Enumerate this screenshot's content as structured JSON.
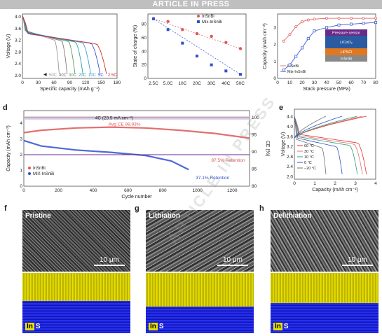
{
  "banner": "ARTICLE IN PRESS",
  "colors": {
    "red": "#e05555",
    "blue": "#2f4fd0",
    "yellow": "#e0d800",
    "grid": "#dddddd"
  },
  "panel_labels": {
    "d": "d",
    "e": "e",
    "f": "f",
    "g": "g",
    "h": "h"
  },
  "chart_data": [
    {
      "id": "a",
      "type": "line",
      "xlabel": "Specific capacity (mAh g⁻¹)",
      "ylabel": "Voltage (V)",
      "xlim": [
        0,
        180
      ],
      "ylim": [
        1.9,
        4.1
      ],
      "xticks": [
        0,
        30,
        60,
        90,
        120,
        150,
        180
      ],
      "yticks": [
        2.0,
        2.4,
        2.8,
        3.2,
        3.6,
        4.0
      ],
      "legend": [
        "50C",
        "40C",
        "30C",
        "20C",
        "10C",
        "5C",
        "2.5C"
      ],
      "series_colors": [
        "#9a9a9a",
        "#7a7a7a",
        "#5e9a5e",
        "#2ea0a0",
        "#3ea0d0",
        "#3050d0",
        "#d03030"
      ],
      "series_capacity_end": [
        70,
        85,
        100,
        115,
        130,
        148,
        160
      ]
    },
    {
      "id": "b",
      "type": "scatter",
      "xlabel": "",
      "ylabel": "State of charge (%)",
      "categories": [
        "2.5C",
        "5.0C",
        "10C",
        "20C",
        "30C",
        "40C",
        "50C"
      ],
      "ylim": [
        0,
        95
      ],
      "yticks": [
        0,
        20,
        40,
        60,
        80
      ],
      "series": [
        {
          "name": "InSnBi",
          "color": "#e05555",
          "values": [
            88,
            84,
            72,
            66,
            62,
            53,
            44
          ]
        },
        {
          "name": "Mix-InSnBi",
          "color": "#2f4fd0",
          "values": [
            88,
            72,
            52,
            33,
            20,
            11,
            6
          ]
        }
      ]
    },
    {
      "id": "c",
      "type": "line",
      "xlabel": "Stack pressure (MPa)",
      "ylabel": "Capacity (mAh cm⁻²)",
      "xlim": [
        0,
        80
      ],
      "ylim": [
        0,
        3.8
      ],
      "xticks": [
        0,
        10,
        20,
        30,
        40,
        50,
        60,
        70,
        80
      ],
      "yticks": [
        0,
        1,
        2,
        3
      ],
      "series": [
        {
          "name": "InSnBi",
          "color": "#e05555",
          "x": [
            5,
            10,
            15,
            20,
            25,
            30,
            40,
            50,
            60,
            70,
            80
          ],
          "values": [
            2.2,
            2.6,
            3.05,
            3.35,
            3.45,
            3.5,
            3.55,
            3.55,
            3.55,
            3.55,
            3.55
          ]
        },
        {
          "name": "Mix-InSnBi",
          "color": "#2f4fd0",
          "x": [
            5,
            10,
            15,
            20,
            25,
            30,
            40,
            50,
            60,
            70,
            80
          ],
          "values": [
            0.5,
            0.8,
            1.3,
            1.8,
            2.35,
            2.8,
            3.0,
            3.15,
            3.2,
            3.25,
            3.3
          ]
        }
      ],
      "inset": {
        "layers": [
          "Pressure sensor",
          "LiCoO₂",
          "LiPSCl",
          "InSnBi"
        ],
        "colors": [
          "#6a2a8a",
          "#2a5aa0",
          "#e07820",
          "#888888"
        ]
      }
    },
    {
      "id": "d",
      "type": "scatter",
      "xlabel": "Cycle number",
      "ylabel": "Capacity (mAh cm⁻²)",
      "ylabel2": "CE (%)",
      "xlim": [
        0,
        1300
      ],
      "ylim": [
        0,
        4.8
      ],
      "xticks": [
        0,
        200,
        400,
        600,
        800,
        1000,
        1200
      ],
      "yticks": [
        0,
        1,
        2,
        3,
        4
      ],
      "y2ticks": [
        80,
        85,
        90,
        95,
        100
      ],
      "y2lim": [
        80,
        102
      ],
      "annotations": {
        "avg_ce": "Avg CE 99.93%",
        "rate": "4C (23.5 mA cm⁻²)",
        "retention_red": "87.5% Retention",
        "retention_blue": "37.1% Retention"
      },
      "series": [
        {
          "name": "InSnBi",
          "color": "#e05555",
          "x": [
            0,
            100,
            300,
            500,
            700,
            900,
            1100,
            1300
          ],
          "values": [
            3.4,
            3.55,
            3.7,
            3.75,
            3.7,
            3.55,
            3.35,
            3.05
          ]
        },
        {
          "name": "MIX-InSnBi",
          "color": "#2f4fd0",
          "x": [
            0,
            100,
            300,
            500,
            700,
            850,
            950
          ],
          "values": [
            2.9,
            2.55,
            2.3,
            2.15,
            1.95,
            1.6,
            1.05
          ]
        }
      ],
      "ce_level": 99.9
    },
    {
      "id": "e",
      "type": "line",
      "xlabel": "Capacity (mAh  cm⁻²)",
      "ylabel": "Voltage (V)",
      "xlim": [
        0,
        4
      ],
      "ylim": [
        1.9,
        4.7
      ],
      "xticks": [
        0,
        1,
        2,
        3,
        4
      ],
      "yticks": [
        2.0,
        2.4,
        2.8,
        3.2,
        3.6,
        4.0,
        4.4
      ],
      "legend": [
        "60 °C",
        "30 °C",
        "10 °C",
        "0 °C",
        "−20 °C"
      ],
      "series_colors": [
        "#e03030",
        "#e07070",
        "#2ea070",
        "#3050d0",
        "#707070"
      ],
      "series_capacity_end": [
        3.55,
        3.35,
        3.1,
        2.35,
        1.55
      ]
    }
  ],
  "images": {
    "f": {
      "title": "Pristine",
      "scale": "10 μm"
    },
    "g": {
      "title": "Lithiation",
      "scale": "10 μm"
    },
    "h": {
      "title": "Delithiation",
      "scale": "10 μm"
    }
  },
  "eds_legend": {
    "in": "In",
    "s": "S"
  },
  "watermark": "ARTICLE IN PRESS"
}
